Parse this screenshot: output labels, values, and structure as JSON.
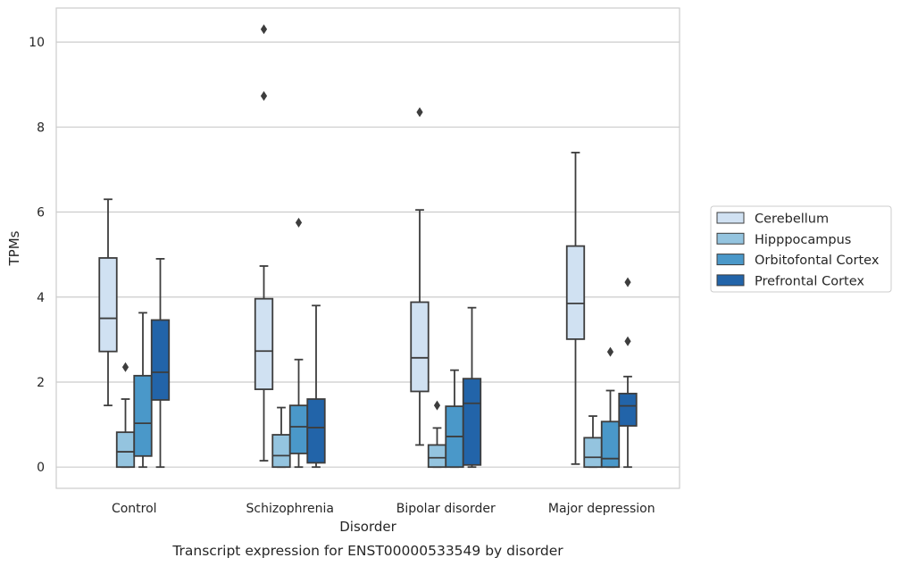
{
  "caption": "Transcript expression for ENST00000533549 by disorder",
  "chart_data": {
    "type": "boxplot",
    "xlabel": "Disorder",
    "ylabel": "TPMs",
    "ylim": [
      -0.5,
      10.8
    ],
    "yticks": [
      0,
      2,
      4,
      6,
      8,
      10
    ],
    "grid": "horizontal",
    "legend_position": "right",
    "categories": [
      "Control",
      "Schizophrenia",
      "Bipolar disorder",
      "Major depression"
    ],
    "series": [
      {
        "name": "Cerebellum",
        "color": "#d0e1f2",
        "boxes": [
          {
            "whislo": 1.45,
            "q1": 2.72,
            "med": 3.5,
            "q3": 4.92,
            "whishi": 6.3,
            "fliers": []
          },
          {
            "whislo": 0.15,
            "q1": 1.83,
            "med": 2.73,
            "q3": 3.96,
            "whishi": 4.73,
            "fliers": [
              8.73,
              10.3
            ]
          },
          {
            "whislo": 0.52,
            "q1": 1.78,
            "med": 2.57,
            "q3": 3.88,
            "whishi": 6.05,
            "fliers": [
              8.35
            ]
          },
          {
            "whislo": 0.07,
            "q1": 3.01,
            "med": 3.85,
            "q3": 5.2,
            "whishi": 7.4,
            "fliers": []
          }
        ]
      },
      {
        "name": "Hipppocampus",
        "color": "#94c4df",
        "boxes": [
          {
            "whislo": 0.0,
            "q1": 0.0,
            "med": 0.36,
            "q3": 0.82,
            "whishi": 1.6,
            "fliers": [
              2.35
            ]
          },
          {
            "whislo": 0.0,
            "q1": 0.0,
            "med": 0.27,
            "q3": 0.76,
            "whishi": 1.4,
            "fliers": []
          },
          {
            "whislo": 0.0,
            "q1": 0.0,
            "med": 0.22,
            "q3": 0.52,
            "whishi": 0.92,
            "fliers": [
              1.45
            ]
          },
          {
            "whislo": 0.0,
            "q1": 0.0,
            "med": 0.23,
            "q3": 0.69,
            "whishi": 1.2,
            "fliers": []
          }
        ]
      },
      {
        "name": "Orbitofontal Cortex",
        "color": "#4a98c9",
        "boxes": [
          {
            "whislo": 0.0,
            "q1": 0.26,
            "med": 1.03,
            "q3": 2.15,
            "whishi": 3.63,
            "fliers": []
          },
          {
            "whislo": 0.0,
            "q1": 0.32,
            "med": 0.95,
            "q3": 1.45,
            "whishi": 2.53,
            "fliers": [
              5.75
            ]
          },
          {
            "whislo": 0.0,
            "q1": 0.0,
            "med": 0.72,
            "q3": 1.43,
            "whishi": 2.28,
            "fliers": []
          },
          {
            "whislo": 0.0,
            "q1": 0.0,
            "med": 0.2,
            "q3": 1.07,
            "whishi": 1.8,
            "fliers": [
              2.71
            ]
          }
        ]
      },
      {
        "name": "Prefrontal Cortex",
        "color": "#2264a9",
        "boxes": [
          {
            "whislo": 0.0,
            "q1": 1.58,
            "med": 2.23,
            "q3": 3.46,
            "whishi": 4.9,
            "fliers": []
          },
          {
            "whislo": 0.0,
            "q1": 0.1,
            "med": 0.93,
            "q3": 1.6,
            "whishi": 3.8,
            "fliers": []
          },
          {
            "whislo": 0.0,
            "q1": 0.05,
            "med": 1.5,
            "q3": 2.08,
            "whishi": 3.75,
            "fliers": []
          },
          {
            "whislo": 0.0,
            "q1": 0.97,
            "med": 1.44,
            "q3": 1.73,
            "whishi": 2.13,
            "fliers": [
              2.96,
              4.35
            ]
          }
        ]
      }
    ]
  }
}
